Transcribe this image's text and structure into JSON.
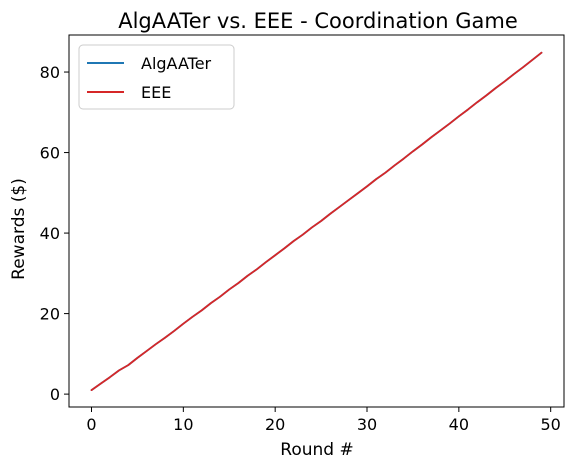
{
  "chart_data": {
    "type": "line",
    "title": "AlgAATer vs. EEE - Coordination Game",
    "xlabel": "Round #",
    "ylabel": "Rewards ($)",
    "xlim": [
      -2.45,
      51.45
    ],
    "ylim": [
      -3.2,
      89.2
    ],
    "xticks": [
      0,
      10,
      20,
      30,
      40,
      50
    ],
    "yticks": [
      0,
      20,
      40,
      60,
      80
    ],
    "grid": false,
    "legend_position": "top-left",
    "x": [
      0,
      1,
      2,
      3,
      4,
      5,
      6,
      7,
      8,
      9,
      10,
      11,
      12,
      13,
      14,
      15,
      16,
      17,
      18,
      19,
      20,
      21,
      22,
      23,
      24,
      25,
      26,
      27,
      28,
      29,
      30,
      31,
      32,
      33,
      34,
      35,
      36,
      37,
      38,
      39,
      40,
      41,
      42,
      43,
      44,
      45,
      46,
      47,
      48,
      49
    ],
    "series": [
      {
        "name": "AlgAATer",
        "color": "#1f77b4",
        "values": [
          1.0,
          2.6,
          4.2,
          5.9,
          7.2,
          9.0,
          10.7,
          12.4,
          14.0,
          15.7,
          17.5,
          19.2,
          20.8,
          22.6,
          24.2,
          26.0,
          27.6,
          29.4,
          31.0,
          32.8,
          34.5,
          36.2,
          38.0,
          39.6,
          41.4,
          43.0,
          44.8,
          46.5,
          48.2,
          49.9,
          51.6,
          53.4,
          55.0,
          56.8,
          58.5,
          60.3,
          62.0,
          63.8,
          65.5,
          67.2,
          69.0,
          70.7,
          72.5,
          74.2,
          76.0,
          77.7,
          79.5,
          81.2,
          83.0,
          84.8
        ]
      },
      {
        "name": "EEE",
        "color": "#d62728",
        "values": [
          1.0,
          2.6,
          4.2,
          5.9,
          7.2,
          9.0,
          10.7,
          12.4,
          14.0,
          15.7,
          17.5,
          19.2,
          20.8,
          22.6,
          24.2,
          26.0,
          27.6,
          29.4,
          31.0,
          32.8,
          34.5,
          36.2,
          38.0,
          39.6,
          41.4,
          43.0,
          44.8,
          46.5,
          48.2,
          49.9,
          51.6,
          53.4,
          55.0,
          56.8,
          58.5,
          60.3,
          62.0,
          63.8,
          65.5,
          67.2,
          69.0,
          70.7,
          72.5,
          74.2,
          76.0,
          77.7,
          79.5,
          81.2,
          83.0,
          84.8
        ]
      }
    ]
  }
}
